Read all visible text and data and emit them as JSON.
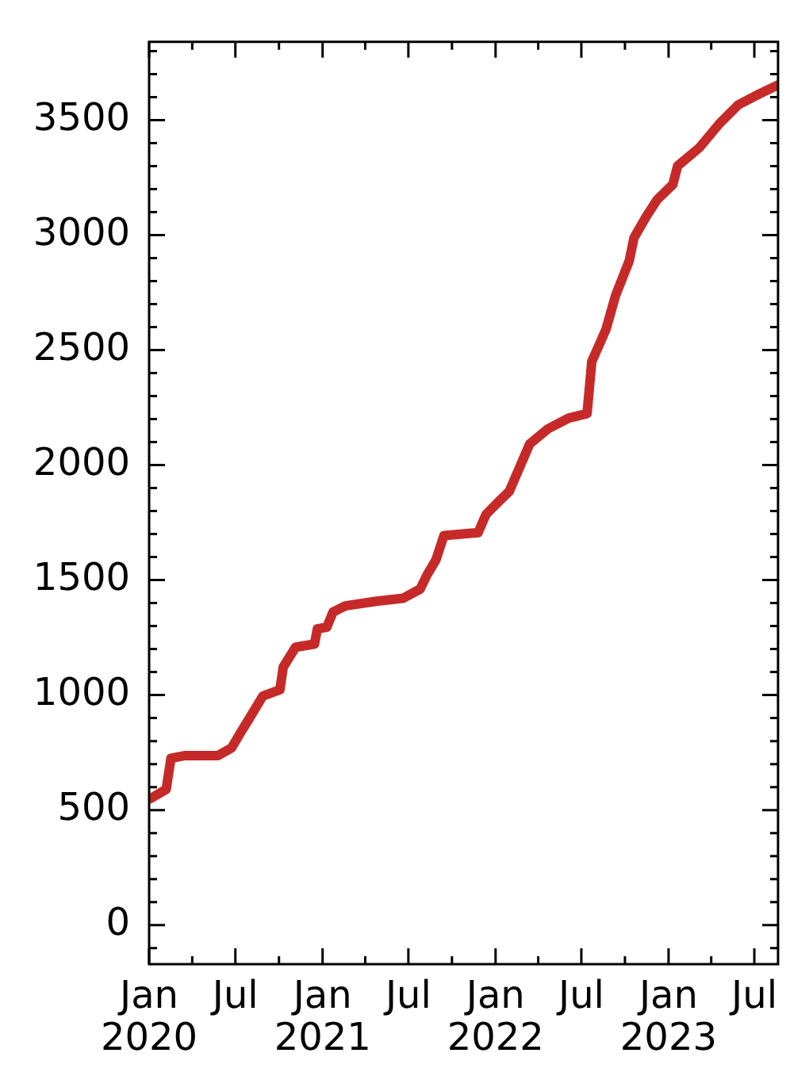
{
  "chart_data": {
    "type": "line",
    "x": [
      "2020-01-04",
      "2020-02-06",
      "2020-02-16",
      "2020-03-17",
      "2020-05-25",
      "2020-06-23",
      "2020-07-10",
      "2020-07-30",
      "2020-08-28",
      "2020-10-03",
      "2020-10-10",
      "2020-11-05",
      "2020-12-15",
      "2020-12-21",
      "2021-01-10",
      "2021-01-23",
      "2021-02-18",
      "2021-04-25",
      "2021-06-20",
      "2021-07-26",
      "2021-08-09",
      "2021-08-28",
      "2021-09-14",
      "2021-11-25",
      "2021-12-12",
      "2022-01-07",
      "2022-01-30",
      "2022-03-14",
      "2022-04-22",
      "2022-06-04",
      "2022-07-13",
      "2022-07-23",
      "2022-08-22",
      "2022-09-11",
      "2022-10-10",
      "2022-10-20",
      "2022-11-15",
      "2022-12-08",
      "2023-01-10",
      "2023-01-20",
      "2023-03-07",
      "2023-04-19",
      "2023-05-28",
      "2023-07-10",
      "2023-08-19"
    ],
    "series": [
      {
        "color": "#c62a28",
        "values": [
          550,
          590,
          725,
          737,
          737,
          770,
          830,
          897,
          996,
          1023,
          1122,
          1208,
          1222,
          1288,
          1295,
          1361,
          1388,
          1408,
          1421,
          1461,
          1521,
          1587,
          1693,
          1706,
          1786,
          1840,
          1886,
          2092,
          2158,
          2204,
          2224,
          2450,
          2590,
          2736,
          2888,
          2988,
          3081,
          3154,
          3220,
          3300,
          3380,
          3486,
          3566,
          3612,
          3652
        ]
      }
    ],
    "xlim": [
      "2020-01-01",
      "2023-08-20"
    ],
    "xticks": [
      {
        "value": "2020-01",
        "label": "Jan 2020"
      },
      {
        "value": "2020-04",
        "label": null
      },
      {
        "value": "2020-07",
        "label": "Jul"
      },
      {
        "value": "2020-10",
        "label": null
      },
      {
        "value": "2021-01",
        "label": "Jan 2021"
      },
      {
        "value": "2021-04",
        "label": null
      },
      {
        "value": "2021-07",
        "label": "Jul"
      },
      {
        "value": "2021-10",
        "label": null
      },
      {
        "value": "2022-01",
        "label": "Jan 2022"
      },
      {
        "value": "2022-04",
        "label": null
      },
      {
        "value": "2022-07",
        "label": "Jul"
      },
      {
        "value": "2022-10",
        "label": null
      },
      {
        "value": "2023-01",
        "label": "Jan 2023"
      },
      {
        "value": "2023-04",
        "label": null
      },
      {
        "value": "2023-07",
        "label": "Jul"
      }
    ],
    "ylim": [
      -170,
      3840
    ],
    "yticks": [
      {
        "value": -100,
        "label": null
      },
      0,
      {
        "value": 100,
        "label": null
      },
      {
        "value": 200,
        "label": null
      },
      {
        "value": 300,
        "label": null
      },
      {
        "value": 400,
        "label": null
      },
      500,
      {
        "value": 600,
        "label": null
      },
      {
        "value": 700,
        "label": null
      },
      {
        "value": 800,
        "label": null
      },
      {
        "value": 900,
        "label": null
      },
      1000,
      {
        "value": 1100,
        "label": null
      },
      {
        "value": 1200,
        "label": null
      },
      {
        "value": 1300,
        "label": null
      },
      {
        "value": 1400,
        "label": null
      },
      1500,
      {
        "value": 1600,
        "label": null
      },
      {
        "value": 1700,
        "label": null
      },
      {
        "value": 1800,
        "label": null
      },
      {
        "value": 1900,
        "label": null
      },
      2000,
      {
        "value": 2100,
        "label": null
      },
      {
        "value": 2200,
        "label": null
      },
      {
        "value": 2300,
        "label": null
      },
      {
        "value": 2400,
        "label": null
      },
      2500,
      {
        "value": 2600,
        "label": null
      },
      {
        "value": 2700,
        "label": null
      },
      {
        "value": 2800,
        "label": null
      },
      {
        "value": 2900,
        "label": null
      },
      3000,
      {
        "value": 3100,
        "label": null
      },
      {
        "value": 3200,
        "label": null
      },
      {
        "value": 3300,
        "label": null
      },
      {
        "value": 3400,
        "label": null
      },
      3500,
      {
        "value": 3600,
        "label": null
      },
      {
        "value": 3700,
        "label": null
      },
      {
        "value": 3800,
        "label": null
      }
    ],
    "grid": false,
    "legend": false,
    "marker": "none",
    "line_style": "solid"
  }
}
